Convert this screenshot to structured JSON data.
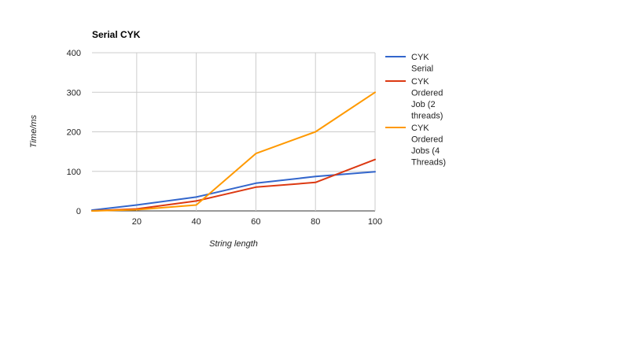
{
  "chart_data": {
    "type": "line",
    "title": "Serial CYK",
    "xlabel": "String length",
    "ylabel": "Time/ms",
    "xlim": [
      5,
      100
    ],
    "ylim": [
      0,
      400
    ],
    "x_ticks": [
      20,
      40,
      60,
      80,
      100
    ],
    "y_ticks": [
      0,
      100,
      200,
      300,
      400
    ],
    "grid": true,
    "legend_position": "right",
    "series": [
      {
        "name": "CYK Serial",
        "color": "#3366cc",
        "x": [
          5,
          20,
          40,
          60,
          80,
          100
        ],
        "y": [
          2,
          15,
          35,
          70,
          87,
          99
        ]
      },
      {
        "name": "CYK Ordered Job (2 threads)",
        "color": "#dc3912",
        "x": [
          5,
          20,
          40,
          60,
          80,
          100
        ],
        "y": [
          0,
          5,
          25,
          60,
          72,
          130
        ]
      },
      {
        "name": "CYK Ordered Jobs (4 Threads)",
        "color": "#ff9900",
        "x": [
          5,
          20,
          40,
          60,
          80,
          100
        ],
        "y": [
          0,
          3,
          15,
          145,
          200,
          300
        ]
      }
    ],
    "legend_lines": [
      [
        "CYK",
        "Serial"
      ],
      [
        "CYK",
        "Ordered",
        "Job (2",
        "threads)"
      ],
      [
        "CYK",
        "Ordered",
        "Jobs (4",
        "Threads)"
      ]
    ]
  }
}
